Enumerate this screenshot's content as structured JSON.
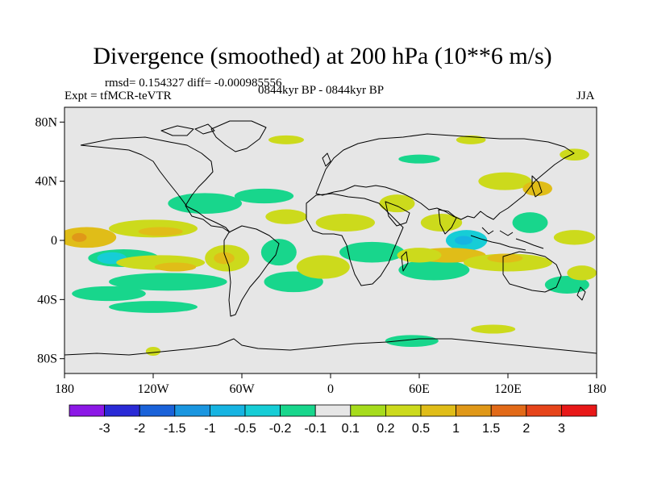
{
  "title": "Divergence (smoothed) at 200 hPa (10**6 m/s)",
  "stats_text": "rmsd= 0.154327  diff= -0.000985556",
  "experiment_text": "Expt = tfMCR-teVTR",
  "period_text": "0844kyr BP - 0844kyr BP",
  "season_text": "JJA",
  "map": {
    "background": "#e6e6e6",
    "lon_range": [
      -180,
      180
    ],
    "lat_range": [
      -90,
      90
    ],
    "lat_ticks": [
      {
        "value": 80,
        "label": "80N"
      },
      {
        "value": 40,
        "label": "40N"
      },
      {
        "value": 0,
        "label": "0"
      },
      {
        "value": -40,
        "label": "40S"
      },
      {
        "value": -80,
        "label": "80S"
      }
    ],
    "lon_ticks": [
      {
        "value": -180,
        "label": "180"
      },
      {
        "value": -120,
        "label": "120W"
      },
      {
        "value": -60,
        "label": "60W"
      },
      {
        "value": 0,
        "label": "0"
      },
      {
        "value": 60,
        "label": "60E"
      },
      {
        "value": 120,
        "label": "120E"
      },
      {
        "value": 180,
        "label": "180"
      }
    ],
    "fields": [
      {
        "name": "conv-pacific-south",
        "lon": -140,
        "lat": -12,
        "rlon": 24,
        "rlat": 6,
        "level": -0.2
      },
      {
        "name": "conv-pacific-south-core",
        "lon": -148,
        "lat": -12,
        "rlon": 10,
        "rlat": 4,
        "level": -0.5
      },
      {
        "name": "conv-pacific-south2",
        "lon": -110,
        "lat": -28,
        "rlon": 40,
        "rlat": 6,
        "level": -0.2
      },
      {
        "name": "conv-pacific-south3",
        "lon": -150,
        "lat": -36,
        "rlon": 25,
        "rlat": 5,
        "level": -0.2
      },
      {
        "name": "conv-southern-band",
        "lon": -120,
        "lat": -45,
        "rlon": 30,
        "rlat": 4,
        "level": -0.2
      },
      {
        "name": "conv-north-pacific",
        "lon": -85,
        "lat": 25,
        "rlon": 25,
        "rlat": 7,
        "level": -0.2
      },
      {
        "name": "conv-north-pacific2",
        "lon": -45,
        "lat": 30,
        "rlon": 20,
        "rlat": 5,
        "level": -0.2
      },
      {
        "name": "conv-atlantic-trop",
        "lon": -35,
        "lat": -8,
        "rlon": 12,
        "rlat": 9,
        "level": -0.2
      },
      {
        "name": "conv-atlantic-south",
        "lon": -25,
        "lat": -28,
        "rlon": 20,
        "rlat": 7,
        "level": -0.2
      },
      {
        "name": "conv-africa",
        "lon": 28,
        "lat": -8,
        "rlon": 22,
        "rlat": 7,
        "level": -0.2
      },
      {
        "name": "conv-indian",
        "lon": 70,
        "lat": -20,
        "rlon": 24,
        "rlat": 7,
        "level": -0.2
      },
      {
        "name": "conv-indonesia",
        "lon": 92,
        "lat": 0,
        "rlon": 14,
        "rlat": 7,
        "level": -0.5
      },
      {
        "name": "conv-indonesia-core",
        "lon": 90,
        "lat": 0,
        "rlon": 6,
        "rlat": 3,
        "level": -1
      },
      {
        "name": "conv-west-pacific",
        "lon": 135,
        "lat": 12,
        "rlon": 12,
        "rlat": 7,
        "level": -0.2
      },
      {
        "name": "conv-south-pacific-east",
        "lon": 160,
        "lat": -30,
        "rlon": 15,
        "rlat": 6,
        "level": -0.2
      },
      {
        "name": "conv-southern-ocean",
        "lon": 55,
        "lat": -68,
        "rlon": 18,
        "rlat": 4,
        "level": -0.2
      },
      {
        "name": "conv-eurasia",
        "lon": 60,
        "lat": 55,
        "rlon": 14,
        "rlat": 3,
        "level": -0.2
      },
      {
        "name": "div-pacific-eq",
        "lon": -165,
        "lat": 2,
        "rlon": 20,
        "rlat": 7,
        "level": 0.5
      },
      {
        "name": "div-pacific-eq-core",
        "lon": -170,
        "lat": 2,
        "rlon": 5,
        "rlat": 3,
        "level": 1
      },
      {
        "name": "div-pacific-mid",
        "lon": -120,
        "lat": 8,
        "rlon": 30,
        "rlat": 6,
        "level": 0.2
      },
      {
        "name": "div-pacific-ncore",
        "lon": -115,
        "lat": 6,
        "rlon": 15,
        "rlat": 3,
        "level": 0.5
      },
      {
        "name": "div-pacific-south",
        "lon": -115,
        "lat": -15,
        "rlon": 30,
        "rlat": 5,
        "level": 0.2
      },
      {
        "name": "div-pacific-south-core",
        "lon": -105,
        "lat": -18,
        "rlon": 14,
        "rlat": 3,
        "level": 0.5
      },
      {
        "name": "div-south-america",
        "lon": -70,
        "lat": -12,
        "rlon": 15,
        "rlat": 9,
        "level": 0.2
      },
      {
        "name": "div-south-america-core",
        "lon": -72,
        "lat": -12,
        "rlon": 7,
        "rlat": 4,
        "level": 0.5
      },
      {
        "name": "div-atlantic-n",
        "lon": -30,
        "lat": 16,
        "rlon": 14,
        "rlat": 5,
        "level": 0.2
      },
      {
        "name": "div-atlantic-s",
        "lon": -5,
        "lat": -18,
        "rlon": 18,
        "rlat": 8,
        "level": 0.2
      },
      {
        "name": "div-africa-n",
        "lon": 10,
        "lat": 12,
        "rlon": 20,
        "rlat": 6,
        "level": 0.2
      },
      {
        "name": "div-mideast",
        "lon": 45,
        "lat": 25,
        "rlon": 12,
        "rlat": 6,
        "level": 0.2
      },
      {
        "name": "div-india",
        "lon": 75,
        "lat": 12,
        "rlon": 14,
        "rlat": 6,
        "level": 0.2
      },
      {
        "name": "div-indian-s",
        "lon": 80,
        "lat": -10,
        "rlon": 25,
        "rlat": 5,
        "level": 0.5
      },
      {
        "name": "div-indian-s2",
        "lon": 60,
        "lat": -10,
        "rlon": 15,
        "rlat": 5,
        "level": 0.2
      },
      {
        "name": "div-east-asia",
        "lon": 118,
        "lat": 40,
        "rlon": 18,
        "rlat": 6,
        "level": 0.2
      },
      {
        "name": "div-japan",
        "lon": 140,
        "lat": 35,
        "rlon": 10,
        "rlat": 5,
        "level": 0.5
      },
      {
        "name": "div-pacific-west",
        "lon": 120,
        "lat": -15,
        "rlon": 30,
        "rlat": 6,
        "level": 0.2
      },
      {
        "name": "div-pacific-west-core",
        "lon": 118,
        "lat": -12,
        "rlon": 12,
        "rlat": 3,
        "level": 0.5
      },
      {
        "name": "div-east-pacific-eq",
        "lon": 165,
        "lat": 2,
        "rlon": 14,
        "rlat": 5,
        "level": 0.2
      },
      {
        "name": "div-south-pacific-far",
        "lon": 170,
        "lat": -22,
        "rlon": 10,
        "rlat": 5,
        "level": 0.2
      },
      {
        "name": "div-southern-ocean",
        "lon": 110,
        "lat": -60,
        "rlon": 15,
        "rlat": 3,
        "level": 0.2
      },
      {
        "name": "div-arctic",
        "lon": -30,
        "lat": 68,
        "rlon": 12,
        "rlat": 3,
        "level": 0.2
      },
      {
        "name": "div-siberia",
        "lon": 95,
        "lat": 68,
        "rlon": 10,
        "rlat": 3,
        "level": 0.2
      },
      {
        "name": "div-north-pacific-high",
        "lon": 165,
        "lat": 58,
        "rlon": 10,
        "rlat": 4,
        "level": 0.2
      },
      {
        "name": "div-antarctic",
        "lon": -120,
        "lat": -75,
        "rlon": 5,
        "rlat": 3,
        "level": 0.2
      }
    ]
  },
  "colorbar": {
    "colors": [
      "#8c18e6",
      "#2a2ad6",
      "#1a62d9",
      "#1a96e0",
      "#16b4e2",
      "#16cdd6",
      "#18d68c",
      "#e6e6e6",
      "#a6dc1c",
      "#ccda1c",
      "#e0bd18",
      "#e09818",
      "#e26a18",
      "#e6441a",
      "#e81818"
    ],
    "labels": [
      "-3",
      "-2",
      "-1.5",
      "-1",
      "-0.5",
      "-0.2",
      "-0.1",
      "0.1",
      "0.2",
      "0.5",
      "1",
      "1.5",
      "2",
      "3"
    ]
  }
}
